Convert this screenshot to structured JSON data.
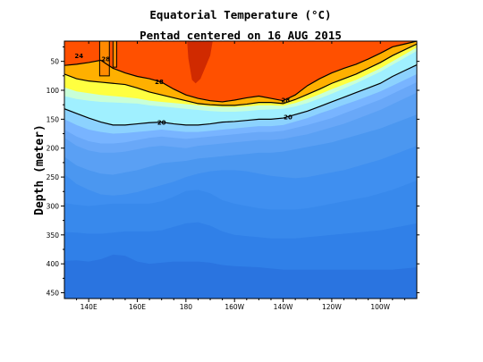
{
  "chart_data": {
    "type": "heatmap",
    "title": "Equatorial Temperature (°C)",
    "subtitle": "Pentad centered on 16 AUG 2015",
    "ylabel": "Depth (meter)",
    "xlabel": "",
    "x_range_lon_east": [
      130,
      275
    ],
    "y_range_depth_m": [
      15,
      460
    ],
    "y_inverted": true,
    "x_ticks": [
      {
        "lon": 140,
        "label": "140E"
      },
      {
        "lon": 160,
        "label": "160E"
      },
      {
        "lon": 180,
        "label": "180"
      },
      {
        "lon": 200,
        "label": "160W"
      },
      {
        "lon": 220,
        "label": "140W"
      },
      {
        "lon": 240,
        "label": "120W"
      },
      {
        "lon": 260,
        "label": "100W"
      }
    ],
    "y_ticks": [
      50,
      100,
      150,
      200,
      250,
      300,
      350,
      400,
      450
    ],
    "lon_grid": [
      130,
      135,
      140,
      145,
      150,
      155,
      160,
      165,
      170,
      175,
      180,
      185,
      190,
      195,
      200,
      205,
      210,
      215,
      220,
      225,
      230,
      235,
      240,
      245,
      250,
      255,
      260,
      265,
      270,
      275
    ],
    "isotherms": [
      {
        "temp": 28,
        "depth": [
          57,
          55,
          52,
          48,
          62,
          70,
          76,
          80,
          86,
          98,
          108,
          114,
          118,
          120,
          117,
          113,
          110,
          114,
          118,
          108,
          92,
          80,
          70,
          62,
          55,
          46,
          36,
          25,
          20,
          15
        ]
      },
      {
        "temp": 26,
        "depth": [
          72,
          80,
          84,
          86,
          88,
          90,
          96,
          103,
          108,
          113,
          118,
          123,
          125,
          126,
          126,
          124,
          121,
          121,
          123,
          116,
          107,
          98,
          88,
          80,
          72,
          62,
          52,
          40,
          30,
          20
        ]
      },
      {
        "temp": 24,
        "depth": [
          95,
          102,
          105,
          108,
          110,
          112,
          114,
          118,
          120,
          122,
          124,
          126,
          128,
          129,
          129,
          128,
          126,
          126,
          127,
          122,
          115,
          107,
          98,
          90,
          82,
          72,
          62,
          50,
          38,
          26
        ]
      },
      {
        "temp": 22,
        "depth": [
          110,
          115,
          118,
          120,
          121,
          122,
          123,
          126,
          128,
          130,
          132,
          134,
          136,
          137,
          137,
          136,
          134,
          133,
          132,
          128,
          122,
          114,
          106,
          97,
          88,
          78,
          68,
          56,
          44,
          32
        ]
      },
      {
        "temp": 20,
        "depth": [
          132,
          140,
          148,
          155,
          160,
          160,
          158,
          156,
          155,
          158,
          160,
          160,
          158,
          155,
          154,
          152,
          150,
          150,
          148,
          142,
          136,
          128,
          120,
          112,
          104,
          96,
          88,
          76,
          66,
          56
        ]
      },
      {
        "temp": 18,
        "depth": [
          150,
          160,
          168,
          172,
          175,
          174,
          172,
          170,
          168,
          170,
          172,
          172,
          170,
          168,
          166,
          164,
          162,
          162,
          160,
          154,
          148,
          140,
          133,
          125,
          118,
          110,
          102,
          92,
          82,
          72
        ]
      },
      {
        "temp": 16,
        "depth": [
          168,
          180,
          188,
          192,
          192,
          190,
          186,
          182,
          180,
          182,
          184,
          182,
          180,
          178,
          176,
          174,
          172,
          172,
          170,
          165,
          160,
          154,
          148,
          140,
          132,
          124,
          116,
          106,
          96,
          86
        ]
      },
      {
        "temp": 14,
        "depth": [
          182,
          196,
          204,
          208,
          208,
          206,
          202,
          198,
          196,
          198,
          200,
          196,
          194,
          192,
          190,
          188,
          186,
          186,
          184,
          180,
          176,
          170,
          164,
          158,
          150,
          142,
          134,
          124,
          114,
          104
        ]
      },
      {
        "temp": 12,
        "depth": [
          215,
          230,
          238,
          244,
          246,
          242,
          238,
          232,
          226,
          224,
          222,
          218,
          216,
          214,
          212,
          210,
          208,
          208,
          206,
          202,
          198,
          194,
          190,
          184,
          178,
          172,
          166,
          158,
          150,
          142
        ]
      },
      {
        "temp": 11,
        "depth": [
          245,
          262,
          272,
          280,
          282,
          280,
          276,
          270,
          264,
          258,
          250,
          244,
          240,
          238,
          238,
          240,
          244,
          248,
          250,
          252,
          250,
          246,
          242,
          238,
          232,
          226,
          220,
          212,
          204,
          196
        ]
      },
      {
        "temp": 10,
        "depth": [
          295,
          298,
          300,
          298,
          296,
          296,
          296,
          296,
          292,
          284,
          274,
          272,
          278,
          290,
          296,
          300,
          304,
          306,
          306,
          306,
          304,
          300,
          296,
          292,
          288,
          284,
          278,
          272,
          264,
          256
        ]
      },
      {
        "temp": 9,
        "depth": [
          345,
          346,
          348,
          348,
          346,
          344,
          344,
          344,
          342,
          336,
          330,
          328,
          334,
          344,
          350,
          352,
          354,
          356,
          356,
          356,
          354,
          352,
          350,
          348,
          346,
          344,
          342,
          338,
          334,
          330
        ]
      },
      {
        "temp": 8,
        "depth": [
          395,
          394,
          396,
          392,
          384,
          386,
          396,
          400,
          398,
          396,
          396,
          396,
          398,
          402,
          404,
          405,
          406,
          408,
          410,
          410,
          410,
          410,
          410,
          410,
          410,
          410,
          410,
          410,
          408,
          406
        ]
      }
    ],
    "band_colors": [
      {
        "min": 29,
        "color": "#d02a00"
      },
      {
        "min": 28,
        "color": "#ff5000"
      },
      {
        "min": 27,
        "color": "#ff8a00"
      },
      {
        "min": 26,
        "color": "#ffb000"
      },
      {
        "min": 25,
        "color": "#ffd000"
      },
      {
        "min": 24,
        "color": "#ffff40"
      },
      {
        "min": 22,
        "color": "#c8ffd8"
      },
      {
        "min": 20,
        "color": "#a0f0ff"
      },
      {
        "min": 18,
        "color": "#8cd2fe"
      },
      {
        "min": 16,
        "color": "#78b4ff"
      },
      {
        "min": 14,
        "color": "#69a8f8"
      },
      {
        "min": 12,
        "color": "#5aa0f4"
      },
      {
        "min": 11,
        "color": "#4b97f0"
      },
      {
        "min": 10,
        "color": "#3f8ff0"
      },
      {
        "min": 9,
        "color": "#3889ec"
      },
      {
        "min": 8,
        "color": "#3080e8"
      },
      {
        "min": 0,
        "color": "#2a74e0"
      }
    ],
    "warm_pool_29": {
      "lon": [
        180.5,
        181,
        182.5,
        184,
        186,
        188,
        190,
        191
      ],
      "depth": [
        15,
        45,
        82,
        88,
        80,
        60,
        40,
        15
      ]
    },
    "contour_lines": [
      {
        "temp": 28,
        "label": "28",
        "labels_at_lon": [
          169,
          221
        ]
      },
      {
        "temp": 26,
        "label": "26",
        "labels_at_lon": []
      },
      {
        "temp": 20,
        "label": "20",
        "labels_at_lon": [
          170,
          222
        ]
      }
    ],
    "left_labels": [
      {
        "text": "24",
        "lon": 136,
        "depth": 40
      },
      {
        "text": "28",
        "lon": 147,
        "depth": 45
      }
    ],
    "extra_28_spikes": [
      {
        "lon_left": 144.5,
        "lon_right": 148.5,
        "bottom_depth": 75
      },
      {
        "lon_left": 150,
        "lon_right": 151.5,
        "bottom_depth": 60
      }
    ]
  }
}
